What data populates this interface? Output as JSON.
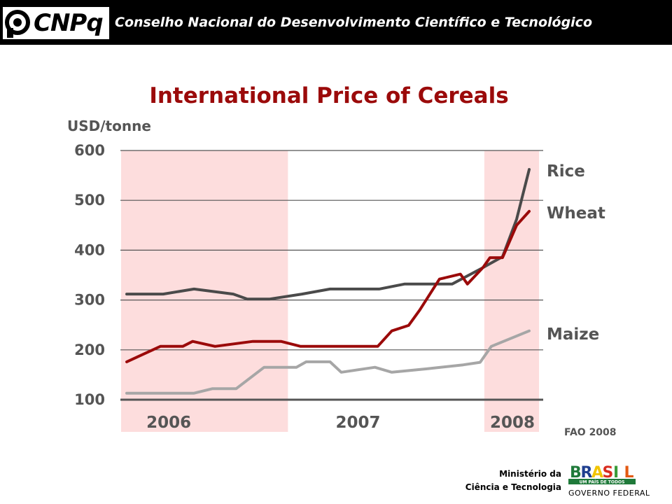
{
  "header": {
    "logo_text": "CNPq",
    "title": "Conselho Nacional do Desenvolvimento Científico e Tecnológico"
  },
  "chart_data": {
    "type": "line",
    "title": "International Price of Cereals",
    "ylabel": "USD/tonne",
    "xlabel": "",
    "ylim": [
      100,
      600
    ],
    "yticks": [
      100,
      200,
      300,
      400,
      500,
      600
    ],
    "xlim": [
      0,
      29
    ],
    "year_labels": [
      {
        "label": "2006",
        "x": 3
      },
      {
        "label": "2007",
        "x": 16.5
      },
      {
        "label": "2008",
        "x": 27.5
      }
    ],
    "shaded_periods": [
      {
        "label": "2006",
        "from": -0.4,
        "to": 11.5
      },
      {
        "label": "2008",
        "from": 25.5,
        "to": 29.4
      }
    ],
    "colors": {
      "shade": "#fddddd",
      "grid": "#555555"
    },
    "series": [
      {
        "name": "Rice",
        "color": "#4a4a4a",
        "points": [
          [
            0,
            312
          ],
          [
            2.6,
            312
          ],
          [
            4.8,
            322
          ],
          [
            7.6,
            312
          ],
          [
            8.6,
            302
          ],
          [
            10.2,
            302
          ],
          [
            12.5,
            312
          ],
          [
            14.5,
            322
          ],
          [
            17,
            322
          ],
          [
            18,
            322
          ],
          [
            19.8,
            332
          ],
          [
            22,
            332
          ],
          [
            23.2,
            332
          ],
          [
            25.2,
            362
          ],
          [
            26.8,
            387
          ],
          [
            27.8,
            462
          ],
          [
            28.7,
            562
          ]
        ]
      },
      {
        "name": "Wheat",
        "color": "#9b0a0a",
        "points": [
          [
            0,
            176
          ],
          [
            2.4,
            207
          ],
          [
            4,
            207
          ],
          [
            4.7,
            217
          ],
          [
            6.3,
            207
          ],
          [
            9,
            217
          ],
          [
            11,
            217
          ],
          [
            12.4,
            207
          ],
          [
            17,
            207
          ],
          [
            17.9,
            207
          ],
          [
            18.9,
            238
          ],
          [
            20.1,
            249
          ],
          [
            20.9,
            280
          ],
          [
            22.3,
            342
          ],
          [
            23.8,
            352
          ],
          [
            24.3,
            332
          ],
          [
            25.4,
            365
          ],
          [
            25.9,
            385
          ],
          [
            26.8,
            385
          ],
          [
            27.8,
            450
          ],
          [
            28.7,
            478
          ]
        ]
      },
      {
        "name": "Maize",
        "color": "#a6a6a6",
        "points": [
          [
            0,
            113
          ],
          [
            4.8,
            113
          ],
          [
            6.1,
            122
          ],
          [
            7.8,
            122
          ],
          [
            9.8,
            165
          ],
          [
            12.1,
            165
          ],
          [
            12.8,
            176
          ],
          [
            14.5,
            176
          ],
          [
            15.3,
            155
          ],
          [
            17.7,
            165
          ],
          [
            18.9,
            155
          ],
          [
            21.4,
            162
          ],
          [
            24,
            170
          ],
          [
            25.2,
            175
          ],
          [
            26,
            207
          ],
          [
            28.7,
            238
          ]
        ]
      }
    ],
    "annotation": "FAO 2008"
  },
  "footer": {
    "ministry_line1": "Ministério da",
    "ministry_line2": "Ciência e Tecnologia",
    "brasil_logo_text": "BRASIL",
    "brasil_logo_tagline": "UM PAÍS DE TODOS",
    "government_label": "GOVERNO FEDERAL",
    "brasil_colors": [
      "#1f7a3a",
      "#1f3f8f",
      "#f2c500",
      "#d92c1f",
      "#3a9c3a",
      "#e35a13"
    ]
  }
}
